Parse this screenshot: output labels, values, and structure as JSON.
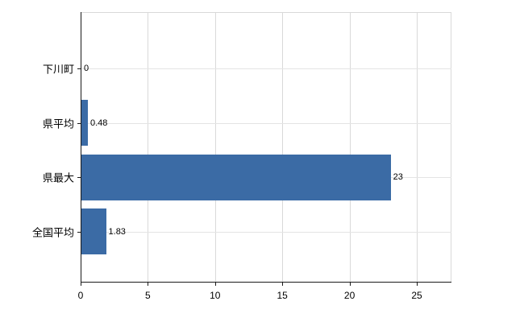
{
  "chart_data": {
    "type": "bar",
    "orientation": "horizontal",
    "categories": [
      "下川町",
      "県平均",
      "県最大",
      "全国平均"
    ],
    "values": [
      0,
      0.48,
      23,
      1.83
    ],
    "value_labels": [
      "0",
      "0.48",
      "23",
      "1.83"
    ],
    "x_ticks": [
      "0",
      "5",
      "10",
      "15",
      "20",
      "25"
    ],
    "x_tick_values": [
      0,
      5,
      10,
      15,
      20,
      25
    ],
    "xlim": [
      0,
      27.5
    ],
    "grid": true,
    "legend_visible": false,
    "bar_color": "#3b6ba5",
    "axis_color": "#1a1a1a",
    "grid_color": "#d9d9d9",
    "background": "#ffffff"
  }
}
